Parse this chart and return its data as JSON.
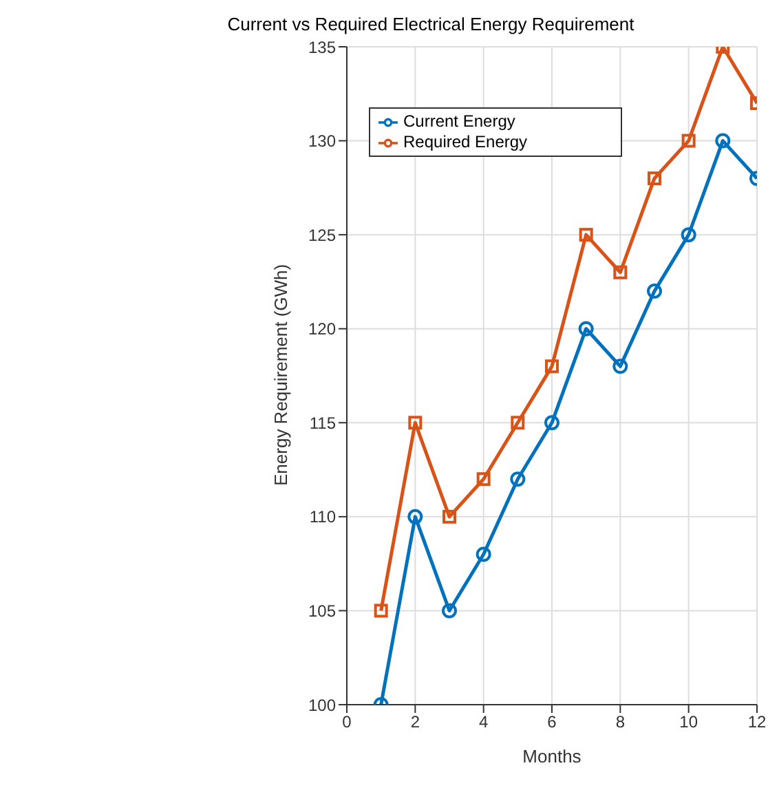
{
  "chart_data": {
    "type": "line",
    "title": "Current vs Required Electrical Energy Requirement",
    "xlabel": "Months",
    "ylabel": "Energy Requirement (GWh)",
    "x": [
      1,
      2,
      3,
      4,
      5,
      6,
      7,
      8,
      9,
      10,
      11,
      12
    ],
    "series": [
      {
        "name": "Current Energy",
        "color": "#0072bd",
        "marker": "circle",
        "values": [
          100,
          110,
          105,
          108,
          112,
          115,
          120,
          118,
          122,
          125,
          130,
          128
        ]
      },
      {
        "name": "Required Energy",
        "color": "#d95319",
        "marker": "square",
        "values": [
          105,
          115,
          110,
          112,
          115,
          118,
          125,
          123,
          128,
          130,
          135,
          132
        ]
      }
    ],
    "xlim": [
      0,
      12
    ],
    "xticks": [
      0,
      2,
      4,
      6,
      8,
      10,
      12
    ],
    "ylim": [
      100,
      135
    ],
    "yticks": [
      100,
      105,
      110,
      115,
      120,
      125,
      130,
      135
    ],
    "grid": true,
    "legend": "top",
    "line_style": "solid"
  }
}
